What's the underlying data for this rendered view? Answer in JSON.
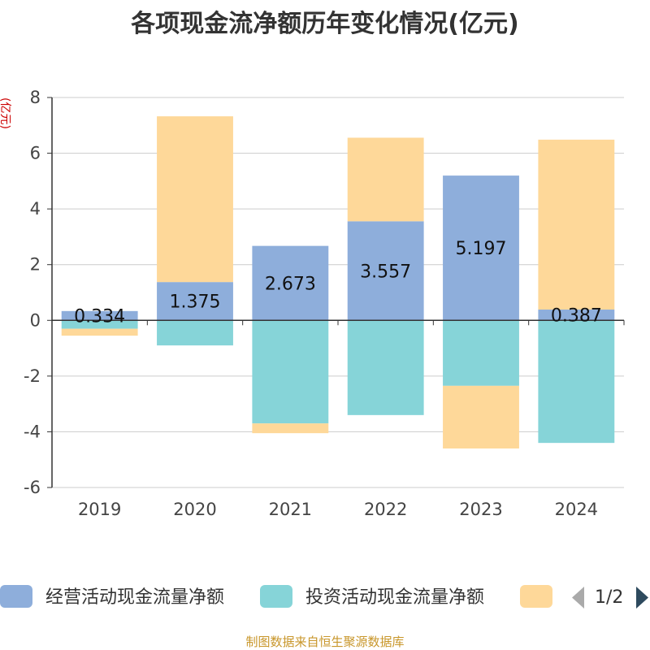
{
  "chart_data": {
    "type": "bar",
    "stacked": true,
    "title": "各项现金流净额历年变化情况(亿元)",
    "ylabel": "(亿元)",
    "xlabel": "",
    "ylim": [
      -6,
      8
    ],
    "yticks": [
      8,
      6,
      4,
      2,
      0,
      -2,
      -4,
      -6
    ],
    "grid": true,
    "legend_position": "bottom",
    "categories": [
      "2019",
      "2020",
      "2021",
      "2022",
      "2023",
      "2024"
    ],
    "series": [
      {
        "name": "经营活动现金流量净额",
        "color": "#8eaedb",
        "values": [
          0.334,
          1.375,
          2.673,
          3.557,
          5.197,
          0.387
        ],
        "labels": [
          "0.334",
          "1.375",
          "2.673",
          "3.557",
          "5.197",
          "0.387"
        ]
      },
      {
        "name": "投资活动现金流量净额",
        "color": "#86d4d8",
        "values": [
          -0.3,
          -0.9,
          -3.7,
          -3.4,
          -2.35,
          -4.4
        ]
      },
      {
        "name": "",
        "color": "#fed899",
        "values": [
          -0.25,
          5.95,
          -0.35,
          3.0,
          -2.25,
          6.1
        ]
      }
    ],
    "legend_page": "1/2",
    "source": "制图数据来自恒生聚源数据库"
  }
}
